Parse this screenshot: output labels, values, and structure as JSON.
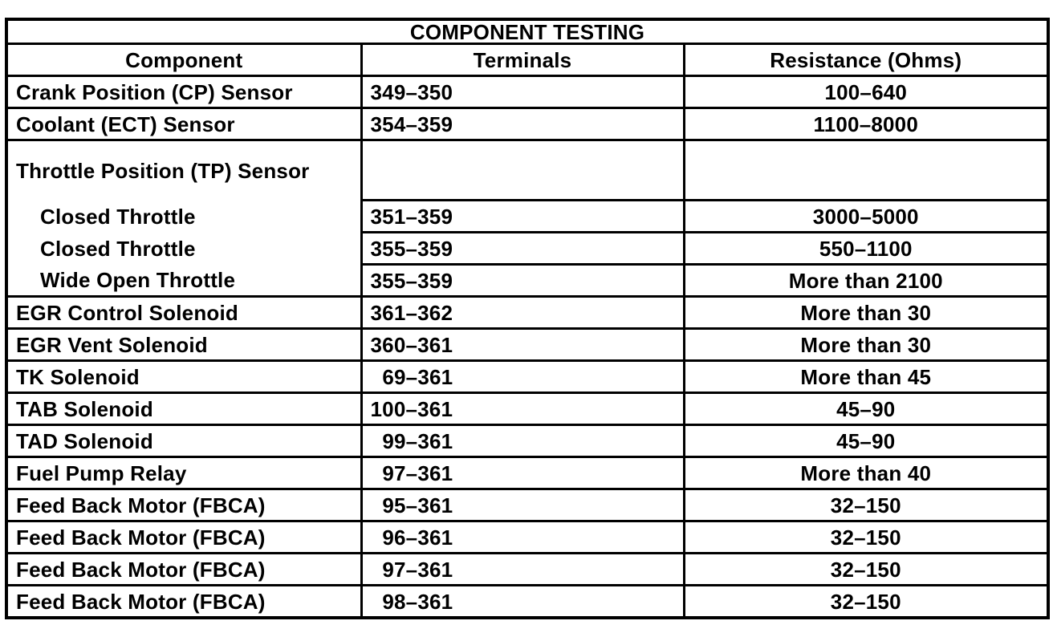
{
  "table": {
    "title": "COMPONENT TESTING",
    "headers": [
      "Component",
      "Terminals",
      "Resistance (Ohms)"
    ],
    "rows": [
      {
        "component": "Crank Position (CP) Sensor",
        "terminals": "349–350",
        "resistance": "100–640"
      },
      {
        "component": "Coolant (ECT) Sensor",
        "terminals": "354–359",
        "resistance": "1100–8000"
      },
      {
        "component": "Throttle Position (TP) Sensor",
        "terminals": "",
        "resistance": ""
      },
      {
        "component": "Closed Throttle",
        "terminals": "351–359",
        "resistance": "3000–5000"
      },
      {
        "component": "Closed Throttle",
        "terminals": "355–359",
        "resistance": "550–1100"
      },
      {
        "component": "Wide Open Throttle",
        "terminals": "355–359",
        "resistance": "More than 2100"
      },
      {
        "component": "EGR Control Solenoid",
        "terminals": "361–362",
        "resistance": "More than 30"
      },
      {
        "component": "EGR Vent Solenoid",
        "terminals": "360–361",
        "resistance": "More than 30"
      },
      {
        "component": "TK Solenoid",
        "terminals": "  69–361",
        "resistance": "More than 45"
      },
      {
        "component": "TAB Solenoid",
        "terminals": "100–361",
        "resistance": "45–90"
      },
      {
        "component": "TAD Solenoid",
        "terminals": "  99–361",
        "resistance": "45–90"
      },
      {
        "component": "Fuel Pump Relay",
        "terminals": "  97–361",
        "resistance": "More than 40"
      },
      {
        "component": "Feed Back Motor (FBCA)",
        "terminals": "  95–361",
        "resistance": "32–150"
      },
      {
        "component": "Feed Back Motor (FBCA)",
        "terminals": "  96–361",
        "resistance": "32–150"
      },
      {
        "component": "Feed Back Motor (FBCA)",
        "terminals": "  97–361",
        "resistance": "32–150"
      },
      {
        "component": "Feed Back Motor (FBCA)",
        "terminals": "  98–361",
        "resistance": "32–150"
      }
    ]
  }
}
